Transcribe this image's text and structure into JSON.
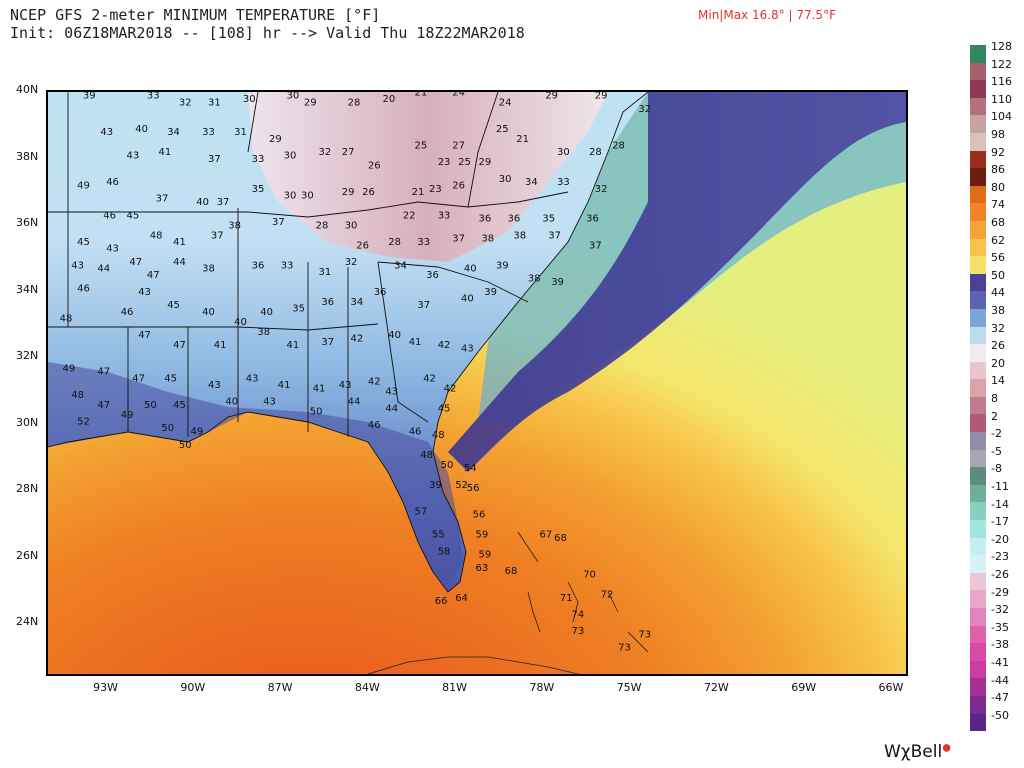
{
  "header": {
    "title": "NCEP GFS 2-meter MINIMUM TEMPERATURE [°F]",
    "subtitle": "Init: 06Z18MAR2018 -- [108] hr --> Valid Thu 18Z22MAR2018",
    "minmax": "Min|Max 16.8° | 77.5°F"
  },
  "map": {
    "lat_labels": [
      "40N",
      "38N",
      "36N",
      "34N",
      "32N",
      "30N",
      "28N",
      "26N",
      "24N"
    ],
    "lon_labels": [
      "93W",
      "90W",
      "87W",
      "84W",
      "81W",
      "78W",
      "75W",
      "72W",
      "69W",
      "66W"
    ],
    "lat_range": [
      22.5,
      40
    ],
    "lon_range": [
      -95,
      -65.5
    ],
    "station_values": [
      {
        "lon": -93.8,
        "lat": 39.8,
        "v": "39"
      },
      {
        "lon": -91.6,
        "lat": 39.8,
        "v": "33"
      },
      {
        "lon": -90.5,
        "lat": 39.6,
        "v": "32"
      },
      {
        "lon": -89.5,
        "lat": 39.6,
        "v": "31"
      },
      {
        "lon": -88.3,
        "lat": 39.7,
        "v": "30"
      },
      {
        "lon": -86.8,
        "lat": 39.8,
        "v": "30"
      },
      {
        "lon": -86.2,
        "lat": 39.6,
        "v": "29"
      },
      {
        "lon": -84.7,
        "lat": 39.6,
        "v": "28"
      },
      {
        "lon": -83.5,
        "lat": 39.7,
        "v": "20"
      },
      {
        "lon": -82.4,
        "lat": 39.9,
        "v": "21"
      },
      {
        "lon": -81.1,
        "lat": 39.9,
        "v": "24"
      },
      {
        "lon": -79.5,
        "lat": 39.6,
        "v": "24"
      },
      {
        "lon": -77.9,
        "lat": 39.8,
        "v": "29"
      },
      {
        "lon": -76.2,
        "lat": 39.8,
        "v": "29"
      },
      {
        "lon": -74.7,
        "lat": 39.4,
        "v": "32"
      },
      {
        "lon": -93.2,
        "lat": 38.7,
        "v": "43"
      },
      {
        "lon": -92.0,
        "lat": 38.8,
        "v": "40"
      },
      {
        "lon": -90.9,
        "lat": 38.7,
        "v": "34"
      },
      {
        "lon": -89.7,
        "lat": 38.7,
        "v": "33"
      },
      {
        "lon": -88.6,
        "lat": 38.7,
        "v": "31"
      },
      {
        "lon": -87.4,
        "lat": 38.5,
        "v": "29"
      },
      {
        "lon": -85.7,
        "lat": 38.1,
        "v": "32"
      },
      {
        "lon": -84.9,
        "lat": 38.1,
        "v": "27"
      },
      {
        "lon": -82.4,
        "lat": 38.3,
        "v": "25"
      },
      {
        "lon": -81.1,
        "lat": 38.3,
        "v": "27"
      },
      {
        "lon": -79.6,
        "lat": 38.8,
        "v": "25"
      },
      {
        "lon": -78.9,
        "lat": 38.5,
        "v": "21"
      },
      {
        "lon": -77.5,
        "lat": 38.1,
        "v": "30"
      },
      {
        "lon": -76.4,
        "lat": 38.1,
        "v": "28"
      },
      {
        "lon": -75.6,
        "lat": 38.3,
        "v": "28"
      },
      {
        "lon": -92.3,
        "lat": 38.0,
        "v": "43"
      },
      {
        "lon": -91.2,
        "lat": 38.1,
        "v": "41"
      },
      {
        "lon": -89.5,
        "lat": 37.9,
        "v": "37"
      },
      {
        "lon": -88.0,
        "lat": 37.9,
        "v": "33"
      },
      {
        "lon": -86.9,
        "lat": 38.0,
        "v": "30"
      },
      {
        "lon": -84.0,
        "lat": 37.7,
        "v": "26"
      },
      {
        "lon": -81.6,
        "lat": 37.8,
        "v": "23"
      },
      {
        "lon": -80.9,
        "lat": 37.8,
        "v": "25"
      },
      {
        "lon": -80.2,
        "lat": 37.8,
        "v": "29"
      },
      {
        "lon": -94.0,
        "lat": 37.1,
        "v": "49"
      },
      {
        "lon": -93.0,
        "lat": 37.2,
        "v": "46"
      },
      {
        "lon": -91.3,
        "lat": 36.7,
        "v": "37"
      },
      {
        "lon": -89.2,
        "lat": 36.6,
        "v": "37"
      },
      {
        "lon": -88.0,
        "lat": 37.0,
        "v": "35"
      },
      {
        "lon": -86.9,
        "lat": 36.8,
        "v": "30"
      },
      {
        "lon": -86.3,
        "lat": 36.8,
        "v": "30"
      },
      {
        "lon": -84.9,
        "lat": 36.9,
        "v": "29"
      },
      {
        "lon": -84.2,
        "lat": 36.9,
        "v": "26"
      },
      {
        "lon": -82.5,
        "lat": 36.9,
        "v": "21"
      },
      {
        "lon": -81.9,
        "lat": 37.0,
        "v": "23"
      },
      {
        "lon": -81.1,
        "lat": 37.1,
        "v": "26"
      },
      {
        "lon": -79.5,
        "lat": 37.3,
        "v": "30"
      },
      {
        "lon": -78.6,
        "lat": 37.2,
        "v": "34"
      },
      {
        "lon": -77.5,
        "lat": 37.2,
        "v": "33"
      },
      {
        "lon": -76.2,
        "lat": 37.0,
        "v": "32"
      },
      {
        "lon": -93.1,
        "lat": 36.2,
        "v": "46"
      },
      {
        "lon": -92.3,
        "lat": 36.2,
        "v": "45"
      },
      {
        "lon": -89.9,
        "lat": 36.6,
        "v": "40"
      },
      {
        "lon": -88.8,
        "lat": 35.9,
        "v": "38"
      },
      {
        "lon": -87.3,
        "lat": 36.0,
        "v": "37"
      },
      {
        "lon": -85.8,
        "lat": 35.9,
        "v": "28"
      },
      {
        "lon": -84.8,
        "lat": 35.9,
        "v": "30"
      },
      {
        "lon": -82.8,
        "lat": 36.2,
        "v": "22"
      },
      {
        "lon": -81.6,
        "lat": 36.2,
        "v": "33"
      },
      {
        "lon": -80.2,
        "lat": 36.1,
        "v": "36"
      },
      {
        "lon": -79.2,
        "lat": 36.1,
        "v": "36"
      },
      {
        "lon": -78.0,
        "lat": 36.1,
        "v": "35"
      },
      {
        "lon": -76.5,
        "lat": 36.1,
        "v": "36"
      },
      {
        "lon": -94.0,
        "lat": 35.4,
        "v": "45"
      },
      {
        "lon": -93.0,
        "lat": 35.2,
        "v": "43"
      },
      {
        "lon": -91.5,
        "lat": 35.6,
        "v": "48"
      },
      {
        "lon": -90.7,
        "lat": 35.4,
        "v": "41"
      },
      {
        "lon": -89.4,
        "lat": 35.6,
        "v": "37"
      },
      {
        "lon": -84.4,
        "lat": 35.3,
        "v": "26"
      },
      {
        "lon": -83.3,
        "lat": 35.4,
        "v": "28"
      },
      {
        "lon": -82.3,
        "lat": 35.4,
        "v": "33"
      },
      {
        "lon": -81.1,
        "lat": 35.5,
        "v": "37"
      },
      {
        "lon": -80.1,
        "lat": 35.5,
        "v": "38"
      },
      {
        "lon": -79.0,
        "lat": 35.6,
        "v": "38"
      },
      {
        "lon": -77.8,
        "lat": 35.6,
        "v": "37"
      },
      {
        "lon": -76.4,
        "lat": 35.3,
        "v": "37"
      },
      {
        "lon": -94.2,
        "lat": 34.7,
        "v": "43"
      },
      {
        "lon": -93.3,
        "lat": 34.6,
        "v": "44"
      },
      {
        "lon": -92.2,
        "lat": 34.8,
        "v": "47"
      },
      {
        "lon": -91.6,
        "lat": 34.4,
        "v": "47"
      },
      {
        "lon": -90.7,
        "lat": 34.8,
        "v": "44"
      },
      {
        "lon": -89.7,
        "lat": 34.6,
        "v": "38"
      },
      {
        "lon": -88.0,
        "lat": 34.7,
        "v": "36"
      },
      {
        "lon": -87.0,
        "lat": 34.7,
        "v": "33"
      },
      {
        "lon": -85.7,
        "lat": 34.5,
        "v": "31"
      },
      {
        "lon": -84.8,
        "lat": 34.8,
        "v": "32"
      },
      {
        "lon": -83.1,
        "lat": 34.7,
        "v": "34"
      },
      {
        "lon": -82.0,
        "lat": 34.4,
        "v": "36"
      },
      {
        "lon": -80.7,
        "lat": 34.6,
        "v": "40"
      },
      {
        "lon": -79.6,
        "lat": 34.7,
        "v": "39"
      },
      {
        "lon": -78.5,
        "lat": 34.3,
        "v": "38"
      },
      {
        "lon": -77.7,
        "lat": 34.2,
        "v": "39"
      },
      {
        "lon": -94.0,
        "lat": 34.0,
        "v": "46"
      },
      {
        "lon": -91.9,
        "lat": 33.9,
        "v": "43"
      },
      {
        "lon": -90.9,
        "lat": 33.5,
        "v": "45"
      },
      {
        "lon": -89.7,
        "lat": 33.3,
        "v": "40"
      },
      {
        "lon": -88.6,
        "lat": 33.0,
        "v": "40"
      },
      {
        "lon": -87.7,
        "lat": 33.3,
        "v": "40"
      },
      {
        "lon": -86.6,
        "lat": 33.4,
        "v": "35"
      },
      {
        "lon": -85.6,
        "lat": 33.6,
        "v": "36"
      },
      {
        "lon": -84.6,
        "lat": 33.6,
        "v": "34"
      },
      {
        "lon": -83.8,
        "lat": 33.9,
        "v": "36"
      },
      {
        "lon": -82.3,
        "lat": 33.5,
        "v": "37"
      },
      {
        "lon": -80.8,
        "lat": 33.7,
        "v": "40"
      },
      {
        "lon": -80.0,
        "lat": 33.9,
        "v": "39"
      },
      {
        "lon": -94.6,
        "lat": 33.1,
        "v": "48"
      },
      {
        "lon": -92.5,
        "lat": 33.3,
        "v": "46"
      },
      {
        "lon": -91.9,
        "lat": 32.6,
        "v": "47"
      },
      {
        "lon": -90.7,
        "lat": 32.3,
        "v": "47"
      },
      {
        "lon": -89.3,
        "lat": 32.3,
        "v": "41"
      },
      {
        "lon": -87.8,
        "lat": 32.7,
        "v": "38"
      },
      {
        "lon": -86.8,
        "lat": 32.3,
        "v": "41"
      },
      {
        "lon": -85.6,
        "lat": 32.4,
        "v": "37"
      },
      {
        "lon": -84.6,
        "lat": 32.5,
        "v": "42"
      },
      {
        "lon": -83.3,
        "lat": 32.6,
        "v": "40"
      },
      {
        "lon": -82.6,
        "lat": 32.4,
        "v": "41"
      },
      {
        "lon": -81.6,
        "lat": 32.3,
        "v": "42"
      },
      {
        "lon": -80.8,
        "lat": 32.2,
        "v": "43"
      },
      {
        "lon": -94.5,
        "lat": 31.6,
        "v": "49"
      },
      {
        "lon": -93.3,
        "lat": 31.5,
        "v": "47"
      },
      {
        "lon": -92.1,
        "lat": 31.3,
        "v": "47"
      },
      {
        "lon": -91.0,
        "lat": 31.3,
        "v": "45"
      },
      {
        "lon": -89.5,
        "lat": 31.1,
        "v": "43"
      },
      {
        "lon": -88.2,
        "lat": 31.3,
        "v": "43"
      },
      {
        "lon": -87.1,
        "lat": 31.1,
        "v": "41"
      },
      {
        "lon": -85.9,
        "lat": 31.0,
        "v": "41"
      },
      {
        "lon": -85.0,
        "lat": 31.1,
        "v": "43"
      },
      {
        "lon": -84.0,
        "lat": 31.2,
        "v": "42"
      },
      {
        "lon": -83.4,
        "lat": 30.9,
        "v": "43"
      },
      {
        "lon": -82.1,
        "lat": 31.3,
        "v": "42"
      },
      {
        "lon": -81.4,
        "lat": 31.0,
        "v": "42"
      },
      {
        "lon": -94.2,
        "lat": 30.8,
        "v": "48"
      },
      {
        "lon": -93.3,
        "lat": 30.5,
        "v": "47"
      },
      {
        "lon": -91.7,
        "lat": 30.5,
        "v": "50"
      },
      {
        "lon": -90.7,
        "lat": 30.5,
        "v": "45"
      },
      {
        "lon": -88.9,
        "lat": 30.6,
        "v": "40"
      },
      {
        "lon": -87.6,
        "lat": 30.6,
        "v": "43"
      },
      {
        "lon": -86.0,
        "lat": 30.3,
        "v": "50"
      },
      {
        "lon": -84.7,
        "lat": 30.6,
        "v": "44"
      },
      {
        "lon": -83.4,
        "lat": 30.4,
        "v": "44"
      },
      {
        "lon": -81.6,
        "lat": 30.4,
        "v": "45"
      },
      {
        "lon": -94.0,
        "lat": 30.0,
        "v": "52"
      },
      {
        "lon": -92.5,
        "lat": 30.2,
        "v": "49"
      },
      {
        "lon": -91.1,
        "lat": 29.8,
        "v": "50"
      },
      {
        "lon": -90.1,
        "lat": 29.7,
        "v": "49"
      },
      {
        "lon": -84.0,
        "lat": 29.9,
        "v": "46"
      },
      {
        "lon": -82.6,
        "lat": 29.7,
        "v": "46"
      },
      {
        "lon": -81.8,
        "lat": 29.6,
        "v": "48"
      },
      {
        "lon": -90.5,
        "lat": 29.3,
        "v": "50"
      },
      {
        "lon": -82.2,
        "lat": 29.0,
        "v": "48"
      },
      {
        "lon": -81.5,
        "lat": 28.7,
        "v": "50"
      },
      {
        "lon": -80.7,
        "lat": 28.6,
        "v": "54"
      },
      {
        "lon": -81.9,
        "lat": 28.1,
        "v": "39"
      },
      {
        "lon": -81.0,
        "lat": 28.1,
        "v": "52"
      },
      {
        "lon": -80.6,
        "lat": 28.0,
        "v": "56"
      },
      {
        "lon": -82.4,
        "lat": 27.3,
        "v": "57"
      },
      {
        "lon": -80.4,
        "lat": 27.2,
        "v": "56"
      },
      {
        "lon": -81.8,
        "lat": 26.6,
        "v": "55"
      },
      {
        "lon": -80.3,
        "lat": 26.6,
        "v": "59"
      },
      {
        "lon": -81.6,
        "lat": 26.1,
        "v": "58"
      },
      {
        "lon": -80.2,
        "lat": 26.0,
        "v": "59"
      },
      {
        "lon": -80.3,
        "lat": 25.6,
        "v": "63"
      },
      {
        "lon": -79.3,
        "lat": 25.5,
        "v": "68"
      },
      {
        "lon": -78.1,
        "lat": 26.6,
        "v": "67"
      },
      {
        "lon": -77.6,
        "lat": 26.5,
        "v": "68"
      },
      {
        "lon": -76.6,
        "lat": 25.4,
        "v": "70"
      },
      {
        "lon": -77.4,
        "lat": 24.7,
        "v": "71"
      },
      {
        "lon": -76.0,
        "lat": 24.8,
        "v": "72"
      },
      {
        "lon": -77.0,
        "lat": 24.2,
        "v": "74"
      },
      {
        "lon": -77.0,
        "lat": 23.7,
        "v": "73"
      },
      {
        "lon": -74.7,
        "lat": 23.6,
        "v": "73"
      },
      {
        "lon": -75.4,
        "lat": 23.2,
        "v": "73"
      },
      {
        "lon": -81.7,
        "lat": 24.6,
        "v": "66"
      },
      {
        "lon": -81.0,
        "lat": 24.7,
        "v": "64"
      }
    ]
  },
  "colorbar": {
    "labels": [
      "128",
      "122",
      "116",
      "110",
      "104",
      "98",
      "92",
      "86",
      "80",
      "74",
      "68",
      "62",
      "56",
      "50",
      "44",
      "38",
      "32",
      "26",
      "20",
      "14",
      "8",
      "2",
      "-2",
      "-5",
      "-8",
      "-11",
      "-14",
      "-17",
      "-20",
      "-23",
      "-26",
      "-29",
      "-32",
      "-35",
      "-38",
      "-41",
      "-44",
      "-47",
      "-50"
    ],
    "colors": [
      "#2e8a5e",
      "#a8606f",
      "#8e3a55",
      "#b4707e",
      "#c8a3a5",
      "#d8c2bb",
      "#9b2d1c",
      "#6b1e10",
      "#e26a1a",
      "#ef8526",
      "#f4a33a",
      "#f8c24b",
      "#f5e06a",
      "#4b3f96",
      "#5a63b4",
      "#7ea3d6",
      "#bcdcee",
      "#f6e9ec",
      "#e9c6cd",
      "#d9a2ad",
      "#c27b8c",
      "#b25a74",
      "#8f8fa8",
      "#a6a6b8",
      "#5b8c7f",
      "#6fae9d",
      "#86d0c0",
      "#a4e4df",
      "#c5efef",
      "#d6f2f3",
      "#ebc6d9",
      "#e9a6c8",
      "#e384bb",
      "#e060ad",
      "#d84aa4",
      "#c93ea0",
      "#a23196",
      "#7b2b8e",
      "#5a258a"
    ]
  },
  "logo": {
    "text": "WχBell"
  }
}
